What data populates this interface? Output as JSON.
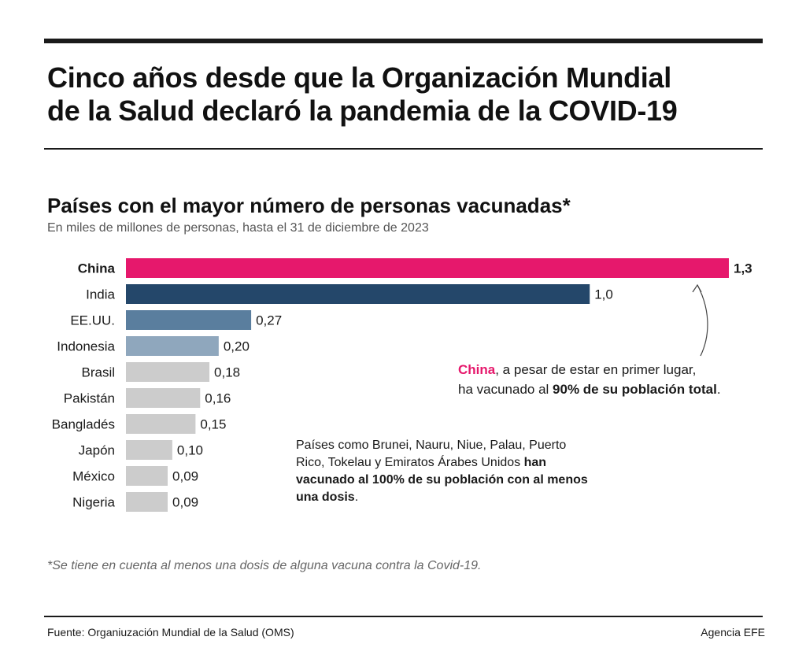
{
  "header": {
    "title_line1": "Cinco años desde que la Organización Mundial",
    "title_line2": "de la Salud declaró la pandemia de la COVID-19"
  },
  "chart_data": {
    "type": "bar",
    "orientation": "horizontal",
    "title": "Países con el mayor número de personas vacunadas*",
    "subtitle": "En miles de millones de personas, hasta el 31 de diciembre de 2023",
    "categories": [
      "China",
      "India",
      "EE.UU.",
      "Indonesia",
      "Brasil",
      "Pakistán",
      "Bangladés",
      "Japón",
      "México",
      "Nigeria"
    ],
    "values": [
      1.3,
      1.0,
      0.27,
      0.2,
      0.18,
      0.16,
      0.15,
      0.1,
      0.09,
      0.09
    ],
    "value_labels": [
      "1,3",
      "1,0",
      "0,27",
      "0,20",
      "0,18",
      "0,16",
      "0,15",
      "0,10",
      "0,09",
      "0,09"
    ],
    "colors": [
      "#e6186c",
      "#24476a",
      "#5a7e9e",
      "#8fa7bd",
      "#cccccc",
      "#cccccc",
      "#cccccc",
      "#cccccc",
      "#cccccc",
      "#cccccc"
    ],
    "highlight_category": "China",
    "xlim": [
      0,
      1.3
    ],
    "axes_visible": false,
    "grid": false,
    "legend": "none"
  },
  "annotations": {
    "china": {
      "highlight": "China",
      "text_a": ", a pesar de estar en primer lugar,",
      "text_b": "ha vacunado al ",
      "bold": "90% de su población total",
      "text_c": "."
    },
    "others": {
      "text_a": "Países como Brunei, Nauru, Niue, Palau, Puerto Rico, Tokelau y Emiratos Árabes Unidos ",
      "bold": "han vacunado al 100% de su población con al menos una dosis",
      "text_b": "."
    }
  },
  "footnote": "*Se tiene en cuenta al menos una dosis de alguna vacuna contra la Covid-19.",
  "footer": {
    "source": "Fuente: Organiuzación Mundial de la Salud (OMS)",
    "credit": "Agencia EFE"
  },
  "colors": {
    "accent": "#e6186c",
    "text": "#1a1a1a",
    "muted": "#555555"
  }
}
